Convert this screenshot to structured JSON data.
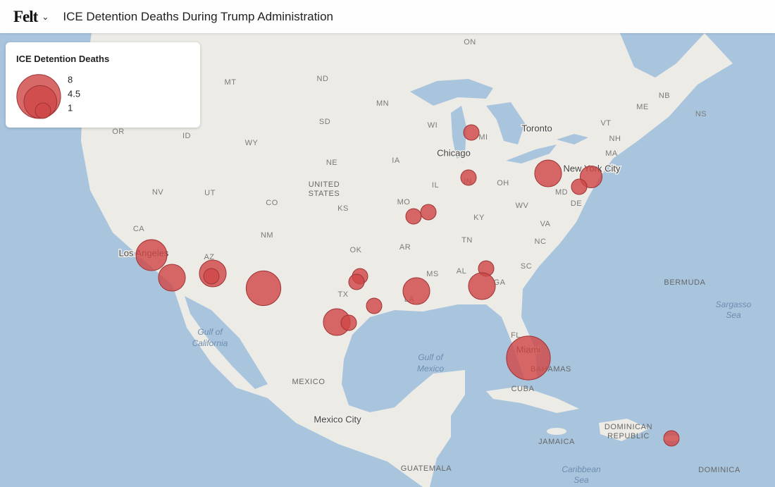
{
  "header": {
    "logo": "Felt",
    "title": "ICE Detention Deaths During Trump Administration"
  },
  "legend": {
    "title": "ICE Detention Deaths",
    "sizes": [
      8,
      4.5,
      1
    ]
  },
  "map_labels": [
    "ON",
    "MT",
    "ND",
    "MN",
    "WI",
    "MI",
    "Toronto",
    "NB",
    "NS",
    "ME",
    "VT",
    "NH",
    "MA",
    "OR",
    "ID",
    "WY",
    "SD",
    "NE",
    "IA",
    "Chicago",
    "UNITED",
    "STATES",
    "NV",
    "UT",
    "CO",
    "KS",
    "MO",
    "IL",
    "IN",
    "OH",
    "New York City",
    "MD",
    "DE",
    "WV",
    "KY",
    "VA",
    "CA",
    "Los Angeles",
    "AZ",
    "NM",
    "OK",
    "AR",
    "TN",
    "NC",
    "MS",
    "AL",
    "GA",
    "SC",
    "TX",
    "LA",
    "BERMUDA",
    "Sargasso",
    "Sea",
    "Gulf of",
    "California",
    "FL",
    "Miami",
    "BAHAMAS",
    "Gulf of",
    "Mexico",
    "MEXICO",
    "CUBA",
    "Mexico City",
    "DOMINICAN",
    "REPUBLIC",
    "JAMAICA",
    "Caribbean",
    "Sea",
    "GUATEMALA",
    "DOMINICA"
  ],
  "markers": {
    "deaths": [
      1,
      1,
      3,
      2,
      1,
      1,
      1,
      4,
      3,
      3,
      1,
      5,
      1,
      1,
      1,
      3,
      1,
      3,
      1,
      3,
      8,
      1
    ]
  }
}
